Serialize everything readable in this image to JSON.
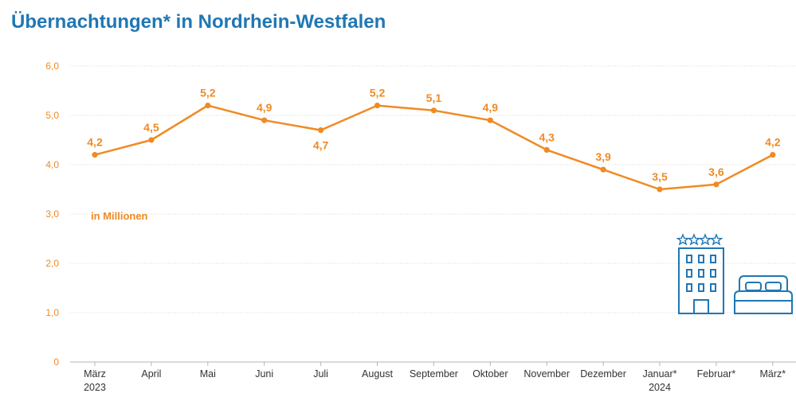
{
  "title": "Übernachtungen* in Nordrhein-Westfalen",
  "colors": {
    "title": "#1f77b4",
    "line": "#f08a24",
    "grid": "#d9d9d9",
    "icon": "#1f77b4"
  },
  "icons": [
    "hotel-icon",
    "bed-icon"
  ],
  "chart_data": {
    "type": "line",
    "title": "Übernachtungen* in Nordrhein-Westfalen",
    "unit_label": "in Millionen",
    "ylim": [
      0,
      6
    ],
    "y_ticks": [
      "0",
      "1,0",
      "2,0",
      "3,0",
      "4,0",
      "5,0",
      "6,0"
    ],
    "categories": [
      "März",
      "April",
      "Mai",
      "Juni",
      "Juli",
      "August",
      "September",
      "Oktober",
      "November",
      "Dezember",
      "Januar*",
      "Februar*",
      "März*"
    ],
    "year_labels": [
      "2023",
      "",
      "",
      "",
      "",
      "",
      "",
      "",
      "",
      "",
      "2024",
      "",
      ""
    ],
    "grid": true,
    "series": [
      {
        "values": [
          4.2,
          4.5,
          5.2,
          4.9,
          4.7,
          5.2,
          5.1,
          4.9,
          4.3,
          3.9,
          3.5,
          3.6,
          4.2
        ],
        "labels": [
          "4,2",
          "4,5",
          "5,2",
          "4,9",
          "4,7",
          "5,2",
          "5,1",
          "4,9",
          "4,3",
          "3,9",
          "3,5",
          "3,6",
          "4,2"
        ]
      }
    ]
  }
}
